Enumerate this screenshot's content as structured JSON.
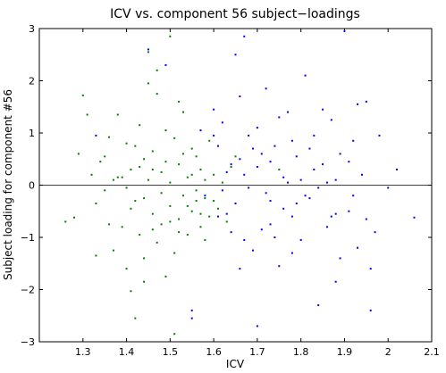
{
  "chart_data": {
    "type": "scatter",
    "title": "ICV vs. component 56 subject−loadings",
    "xlabel": "ICV",
    "ylabel": "Subject loading for component #56",
    "xlim": [
      1.2,
      2.1
    ],
    "ylim": [
      -3,
      3
    ],
    "xticks": [
      1.3,
      1.4,
      1.5,
      1.6,
      1.7,
      1.8,
      1.9,
      2.0,
      2.1
    ],
    "xtick_labels": [
      "1.3",
      "1.4",
      "1.5",
      "1.6",
      "1.7",
      "1.8",
      "1.9",
      "2",
      "2.1"
    ],
    "yticks": [
      -3,
      -2,
      -1,
      0,
      1,
      2,
      3
    ],
    "ytick_labels": [
      "−3",
      "−2",
      "−1",
      "0",
      "1",
      "2",
      "3"
    ],
    "grid": false,
    "reference_line_y": 0,
    "series": [
      {
        "color": "#008000",
        "points": [
          [
            1.26,
            -0.7
          ],
          [
            1.28,
            -0.62
          ],
          [
            1.29,
            0.6
          ],
          [
            1.3,
            1.72
          ],
          [
            1.31,
            1.35
          ],
          [
            1.32,
            0.2
          ],
          [
            1.33,
            -0.35
          ],
          [
            1.34,
            0.45
          ],
          [
            1.35,
            -0.1
          ],
          [
            1.36,
            0.92
          ],
          [
            1.37,
            -1.25
          ],
          [
            1.38,
            1.35
          ],
          [
            1.38,
            0.15
          ],
          [
            1.39,
            -0.8
          ],
          [
            1.4,
            0.8
          ],
          [
            1.4,
            -1.6
          ],
          [
            1.41,
            0.3
          ],
          [
            1.41,
            -2.03
          ],
          [
            1.42,
            0.75
          ],
          [
            1.42,
            -0.3
          ],
          [
            1.43,
            1.15
          ],
          [
            1.43,
            -0.95
          ],
          [
            1.44,
            0.5
          ],
          [
            1.44,
            -1.4
          ],
          [
            1.45,
            0.1
          ],
          [
            1.45,
            1.95
          ],
          [
            1.46,
            -0.55
          ],
          [
            1.46,
            0.65
          ],
          [
            1.47,
            -1.1
          ],
          [
            1.47,
            2.2
          ],
          [
            1.48,
            0.25
          ],
          [
            1.48,
            -0.75
          ],
          [
            1.49,
            1.05
          ],
          [
            1.49,
            -1.75
          ],
          [
            1.5,
            0.05
          ],
          [
            1.5,
            -0.4
          ],
          [
            1.51,
            0.9
          ],
          [
            1.51,
            -1.3
          ],
          [
            1.52,
            0.4
          ],
          [
            1.52,
            -0.65
          ],
          [
            1.53,
            1.4
          ],
          [
            1.53,
            -0.2
          ],
          [
            1.54,
            0.15
          ],
          [
            1.54,
            -0.95
          ],
          [
            1.55,
            0.7
          ],
          [
            1.55,
            -0.5
          ],
          [
            1.56,
            -0.1
          ],
          [
            1.56,
            0.55
          ],
          [
            1.57,
            -0.8
          ],
          [
            1.57,
            0.3
          ],
          [
            1.58,
            -1.05
          ],
          [
            1.58,
            0.1
          ],
          [
            1.59,
            -0.6
          ],
          [
            1.59,
            0.85
          ],
          [
            1.6,
            -0.3
          ],
          [
            1.6,
            0.2
          ],
          [
            1.61,
            -0.45
          ],
          [
            1.62,
            0.05
          ],
          [
            1.63,
            -0.7
          ],
          [
            1.64,
            0.35
          ],
          [
            1.4,
            -0.05
          ],
          [
            1.44,
            -0.25
          ],
          [
            1.46,
            0.3
          ],
          [
            1.48,
            -0.15
          ],
          [
            1.5,
            -0.7
          ],
          [
            1.52,
            -0.9
          ],
          [
            1.53,
            0.6
          ],
          [
            1.55,
            0.2
          ],
          [
            1.56,
            -0.3
          ],
          [
            1.57,
            -0.55
          ],
          [
            1.45,
            2.55
          ],
          [
            1.5,
            2.85
          ],
          [
            1.47,
            1.75
          ],
          [
            1.52,
            1.6
          ],
          [
            1.39,
            0.15
          ],
          [
            1.36,
            -0.75
          ],
          [
            1.42,
            -2.55
          ],
          [
            1.44,
            -1.85
          ],
          [
            1.51,
            -2.85
          ],
          [
            1.33,
            -1.35
          ],
          [
            1.35,
            0.55
          ],
          [
            1.37,
            0.1
          ],
          [
            1.41,
            -0.45
          ],
          [
            1.43,
            0.35
          ],
          [
            1.46,
            -0.85
          ],
          [
            1.49,
            0.45
          ],
          [
            1.54,
            -0.4
          ],
          [
            1.58,
            -0.25
          ],
          [
            1.65,
            0.55
          ],
          [
            1.75,
            0.3
          ]
        ]
      },
      {
        "color": "#0000ff",
        "points": [
          [
            1.33,
            0.95
          ],
          [
            1.45,
            2.6
          ],
          [
            1.49,
            2.3
          ],
          [
            1.55,
            -2.4
          ],
          [
            1.57,
            1.05
          ],
          [
            1.6,
            1.45
          ],
          [
            1.61,
            0.75
          ],
          [
            1.62,
            1.2
          ],
          [
            1.63,
            -0.55
          ],
          [
            1.64,
            0.4
          ],
          [
            1.65,
            2.5
          ],
          [
            1.66,
            -1.6
          ],
          [
            1.67,
            2.85
          ],
          [
            1.68,
            0.95
          ],
          [
            1.69,
            -1.25
          ],
          [
            1.7,
            0.35
          ],
          [
            1.71,
            -0.85
          ],
          [
            1.72,
            1.85
          ],
          [
            1.73,
            -0.3
          ],
          [
            1.74,
            0.75
          ],
          [
            1.75,
            -1.55
          ],
          [
            1.76,
            0.15
          ],
          [
            1.77,
            1.4
          ],
          [
            1.78,
            -0.6
          ],
          [
            1.79,
            0.55
          ],
          [
            1.8,
            -1.05
          ],
          [
            1.81,
            2.1
          ],
          [
            1.82,
            -0.25
          ],
          [
            1.83,
            0.95
          ],
          [
            1.84,
            -2.3
          ],
          [
            1.85,
            0.4
          ],
          [
            1.86,
            -0.8
          ],
          [
            1.87,
            1.25
          ],
          [
            1.88,
            0.1
          ],
          [
            1.89,
            -1.4
          ],
          [
            1.9,
            2.95
          ],
          [
            1.91,
            -0.5
          ],
          [
            1.92,
            0.85
          ],
          [
            1.93,
            -1.2
          ],
          [
            1.94,
            0.2
          ],
          [
            1.95,
            1.6
          ],
          [
            1.96,
            -2.4
          ],
          [
            1.97,
            -0.9
          ],
          [
            1.98,
            0.95
          ],
          [
            2.0,
            -0.05
          ],
          [
            2.02,
            0.3
          ],
          [
            2.06,
            -0.62
          ],
          [
            1.7,
            -2.7
          ],
          [
            1.55,
            -2.55
          ],
          [
            1.66,
            1.7
          ],
          [
            1.68,
            -0.05
          ],
          [
            1.71,
            0.6
          ],
          [
            1.73,
            -0.75
          ],
          [
            1.76,
            -0.45
          ],
          [
            1.78,
            0.85
          ],
          [
            1.81,
            -0.2
          ],
          [
            1.83,
            0.3
          ],
          [
            1.86,
            0.05
          ],
          [
            1.88,
            -0.55
          ],
          [
            1.91,
            0.45
          ],
          [
            1.62,
            -0.1
          ],
          [
            1.64,
            -0.9
          ],
          [
            1.67,
            0.2
          ],
          [
            1.69,
            0.7
          ],
          [
            1.72,
            -0.15
          ],
          [
            1.74,
            -1.0
          ],
          [
            1.77,
            0.05
          ],
          [
            1.79,
            -0.35
          ],
          [
            1.82,
            0.7
          ],
          [
            1.84,
            -0.05
          ],
          [
            1.87,
            -0.6
          ],
          [
            1.89,
            0.6
          ],
          [
            1.92,
            -0.2
          ],
          [
            1.95,
            -0.65
          ],
          [
            1.6,
            0.95
          ],
          [
            1.63,
            0.25
          ],
          [
            1.65,
            -0.35
          ],
          [
            1.67,
            -1.05
          ],
          [
            1.7,
            1.1
          ],
          [
            1.73,
            0.45
          ],
          [
            1.75,
            1.3
          ],
          [
            1.78,
            -1.3
          ],
          [
            1.8,
            0.1
          ],
          [
            1.85,
            1.45
          ],
          [
            1.88,
            -1.85
          ],
          [
            1.93,
            1.55
          ],
          [
            1.96,
            -1.6
          ],
          [
            1.58,
            -0.2
          ],
          [
            1.61,
            -0.6
          ],
          [
            1.66,
            0.5
          ]
        ]
      }
    ]
  }
}
